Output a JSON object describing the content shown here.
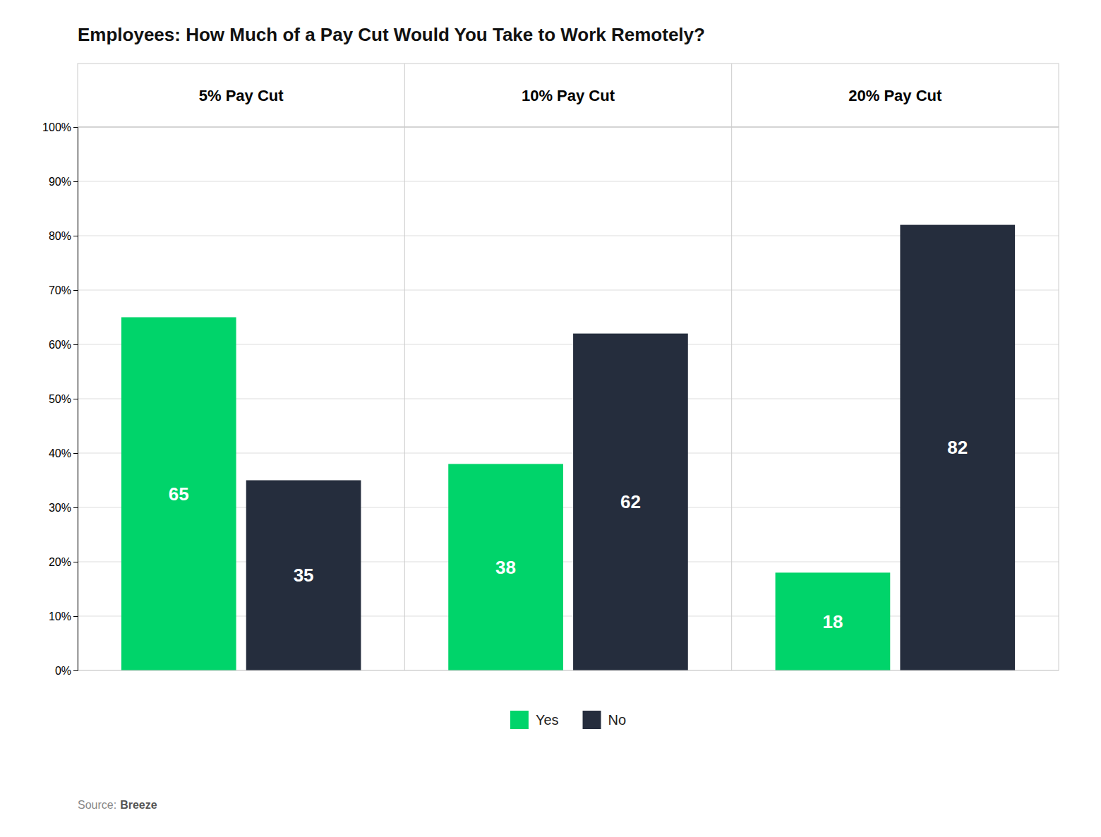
{
  "chart_data": {
    "type": "bar",
    "title": "Employees: How Much of a Pay Cut Would You Take to Work Remotely?",
    "categories": [
      "5% Pay Cut",
      "10% Pay Cut",
      "20% Pay Cut"
    ],
    "series": [
      {
        "name": "Yes",
        "color": "#00D46A",
        "values": [
          65,
          38,
          18
        ]
      },
      {
        "name": "No",
        "color": "#252D3D",
        "values": [
          35,
          62,
          82
        ]
      }
    ],
    "ylim": [
      0,
      100
    ],
    "yticks": [
      {
        "value": 0,
        "label": "0%"
      },
      {
        "value": 10,
        "label": "10%"
      },
      {
        "value": 20,
        "label": "20%"
      },
      {
        "value": 30,
        "label": "30%"
      },
      {
        "value": 40,
        "label": "40%"
      },
      {
        "value": 50,
        "label": "50%"
      },
      {
        "value": 60,
        "label": "60%"
      },
      {
        "value": 70,
        "label": "70%"
      },
      {
        "value": 80,
        "label": "80%"
      },
      {
        "value": 90,
        "label": "90%"
      },
      {
        "value": 100,
        "label": "100%"
      }
    ],
    "grid": true,
    "data_labels": true,
    "legend": "bottom",
    "annotations": [
      "Source:",
      "Breeze"
    ]
  }
}
